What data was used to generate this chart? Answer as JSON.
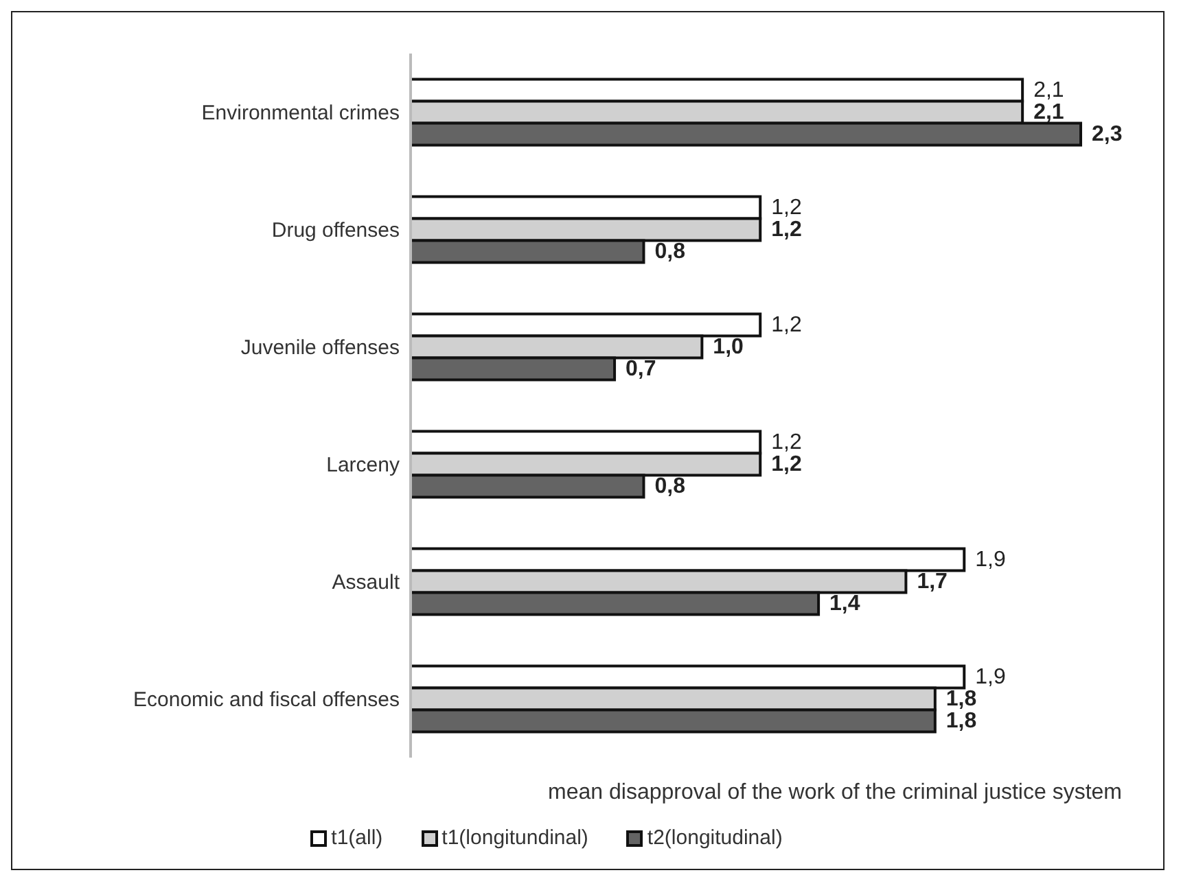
{
  "chart_data": {
    "type": "bar",
    "orientation": "horizontal",
    "xlabel": "mean disapproval of the work of the criminal justice system",
    "categories": [
      "Environmental crimes",
      "Drug offenses",
      "Juvenile offenses",
      "Larceny",
      "Assault",
      "Economic and fiscal offenses"
    ],
    "series": [
      {
        "name": "t1(all)",
        "color": "#ffffff",
        "values": [
          2.1,
          1.2,
          1.2,
          1.2,
          1.9,
          1.9
        ],
        "value_labels": [
          "2,1",
          "1,2",
          "1,2",
          "1,2",
          "1,9",
          "1,9"
        ]
      },
      {
        "name": "t1(longitundinal)",
        "color": "#d0d0d0",
        "values": [
          2.1,
          1.2,
          1.0,
          1.2,
          1.7,
          1.8
        ],
        "value_labels": [
          "2,1",
          "1,2",
          "1,0",
          "1,2",
          "1,7",
          "1,8"
        ]
      },
      {
        "name": "t2(longitudinal)",
        "color": "#646464",
        "values": [
          2.3,
          0.8,
          0.7,
          0.8,
          1.4,
          1.8
        ],
        "value_labels": [
          "2,3",
          "0,8",
          "0,7",
          "0,8",
          "1,4",
          "1,8"
        ]
      }
    ],
    "legend": "bottom"
  }
}
